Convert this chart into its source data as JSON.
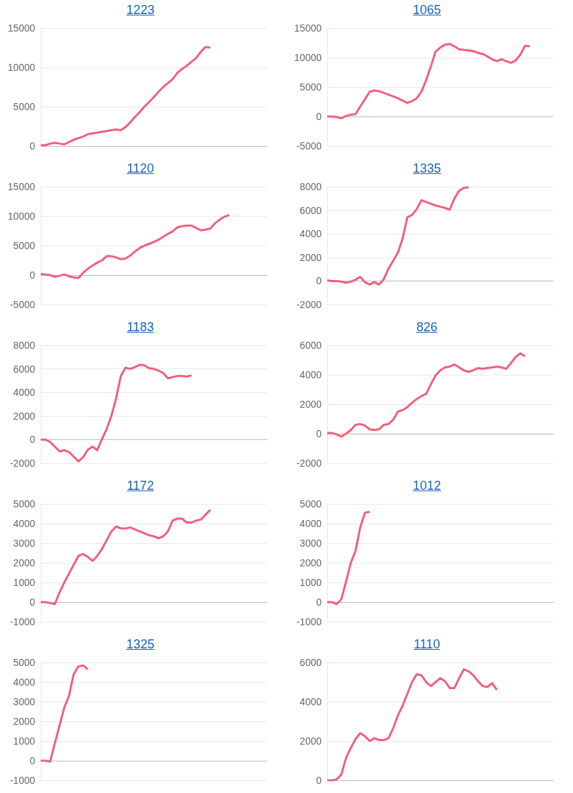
{
  "chart_data": [
    {
      "type": "line",
      "title": "1223",
      "categories": [
        null,
        null,
        null,
        null,
        null,
        null,
        null,
        null,
        null,
        null,
        null,
        null,
        null,
        null,
        null,
        null,
        null,
        null,
        null,
        null,
        null,
        null,
        null,
        null,
        null,
        null,
        null,
        null,
        null,
        null,
        null,
        null,
        null,
        null,
        null,
        null,
        null,
        null,
        null,
        null,
        null,
        null,
        null,
        null,
        null,
        null,
        null,
        null,
        null
      ],
      "color": "#f0607a",
      "grid": "y",
      "ylim": [
        0,
        15000
      ],
      "yticks": [
        0,
        5000,
        10000,
        15000
      ],
      "values": [
        100,
        100,
        300,
        400,
        300,
        200,
        500,
        800,
        1000,
        1200,
        1500,
        1600,
        1700,
        1800,
        1900,
        2000,
        2100,
        2000,
        2400,
        3000,
        3700,
        4300,
        5000,
        5600,
        6200,
        6900,
        7500,
        8000,
        8500,
        9300,
        9800,
        10200,
        10700,
        11200,
        12000,
        12600,
        12500,
        null,
        null,
        null,
        null,
        null,
        null,
        null,
        null,
        null,
        null,
        null,
        null
      ]
    },
    {
      "type": "line",
      "title": "1065",
      "categories": [
        null,
        null,
        null,
        null,
        null,
        null,
        null,
        null,
        null,
        null,
        null,
        null,
        null,
        null,
        null,
        null,
        null,
        null,
        null,
        null,
        null,
        null,
        null,
        null,
        null,
        null,
        null,
        null,
        null,
        null,
        null,
        null,
        null,
        null,
        null,
        null,
        null,
        null,
        null,
        null,
        null,
        null,
        null,
        null,
        null,
        null,
        null,
        null,
        null
      ],
      "color": "#f0607a",
      "grid": "y",
      "ylim": [
        -5000,
        15000
      ],
      "yticks": [
        -5000,
        0,
        5000,
        10000,
        15000
      ],
      "values": [
        0,
        0,
        -100,
        -300,
        100,
        300,
        400,
        1700,
        2900,
        4200,
        4400,
        4300,
        4000,
        3700,
        3400,
        3100,
        2700,
        2300,
        2600,
        3100,
        4200,
        6200,
        8500,
        11000,
        11700,
        12200,
        12300,
        11900,
        11400,
        11300,
        11200,
        11100,
        10800,
        10600,
        10200,
        9700,
        9400,
        9700,
        9400,
        9100,
        9500,
        10500,
        12000,
        11900,
        null,
        null,
        null,
        null,
        null
      ]
    },
    {
      "type": "line",
      "title": "1120",
      "categories": [
        null,
        null,
        null,
        null,
        null,
        null,
        null,
        null,
        null,
        null,
        null,
        null,
        null,
        null,
        null,
        null,
        null,
        null,
        null,
        null,
        null,
        null,
        null,
        null,
        null,
        null,
        null,
        null,
        null,
        null,
        null,
        null,
        null,
        null,
        null,
        null,
        null,
        null,
        null,
        null,
        null,
        null,
        null,
        null,
        null,
        null,
        null,
        null,
        null
      ],
      "color": "#f0607a",
      "grid": "y",
      "ylim": [
        -5000,
        15000
      ],
      "yticks": [
        -5000,
        0,
        5000,
        10000,
        15000
      ],
      "values": [
        200,
        100,
        0,
        -300,
        -100,
        100,
        -200,
        -400,
        -500,
        400,
        1100,
        1600,
        2100,
        2500,
        3200,
        3200,
        3000,
        2700,
        2800,
        3300,
        4000,
        4600,
        5000,
        5300,
        5600,
        6000,
        6500,
        7000,
        7400,
        8100,
        8300,
        8400,
        8400,
        8000,
        7600,
        7700,
        7900,
        8800,
        9400,
        9900,
        10200,
        null,
        null,
        null,
        null,
        null,
        null,
        null,
        null
      ]
    },
    {
      "type": "line",
      "title": "1335",
      "categories": [
        null,
        null,
        null,
        null,
        null,
        null,
        null,
        null,
        null,
        null,
        null,
        null,
        null,
        null,
        null,
        null,
        null,
        null,
        null,
        null,
        null,
        null,
        null,
        null,
        null,
        null,
        null,
        null,
        null,
        null,
        null,
        null,
        null,
        null,
        null,
        null,
        null,
        null,
        null,
        null,
        null,
        null,
        null,
        null,
        null,
        null,
        null,
        null,
        null
      ],
      "color": "#f0607a",
      "grid": "y",
      "ylim": [
        -2000,
        8000
      ],
      "yticks": [
        -2000,
        0,
        2000,
        4000,
        6000,
        8000
      ],
      "values": [
        50,
        0,
        0,
        -50,
        -150,
        -50,
        100,
        350,
        -100,
        -300,
        -100,
        -300,
        150,
        1050,
        1700,
        2400,
        3600,
        5400,
        5600,
        6100,
        6850,
        6700,
        6550,
        6400,
        6300,
        6200,
        6050,
        7000,
        7650,
        7900,
        7950,
        null,
        null,
        null,
        null,
        null,
        null,
        null,
        null,
        null,
        null,
        null,
        null,
        null,
        null,
        null,
        null,
        null,
        null
      ]
    },
    {
      "type": "line",
      "title": "1183",
      "categories": [
        null,
        null,
        null,
        null,
        null,
        null,
        null,
        null,
        null,
        null,
        null,
        null,
        null,
        null,
        null,
        null,
        null,
        null,
        null,
        null,
        null,
        null,
        null,
        null,
        null,
        null,
        null,
        null,
        null,
        null,
        null,
        null,
        null,
        null,
        null,
        null,
        null,
        null,
        null,
        null,
        null,
        null,
        null,
        null,
        null,
        null,
        null,
        null,
        null
      ],
      "color": "#f0607a",
      "grid": "y",
      "ylim": [
        -2000,
        8000
      ],
      "yticks": [
        -2000,
        0,
        2000,
        4000,
        6000,
        8000
      ],
      "values": [
        0,
        0,
        -200,
        -600,
        -1000,
        -900,
        -1050,
        -1450,
        -1850,
        -1500,
        -850,
        -600,
        -900,
        50,
        900,
        2000,
        3500,
        5400,
        6100,
        6000,
        6150,
        6350,
        6300,
        6050,
        6000,
        5850,
        5650,
        5200,
        5300,
        5400,
        5400,
        5350,
        5450,
        null,
        null,
        null,
        null,
        null,
        null,
        null,
        null,
        null,
        null,
        null,
        null,
        null,
        null,
        null,
        null
      ]
    },
    {
      "type": "line",
      "title": "826",
      "categories": [
        null,
        null,
        null,
        null,
        null,
        null,
        null,
        null,
        null,
        null,
        null,
        null,
        null,
        null,
        null,
        null,
        null,
        null,
        null,
        null,
        null,
        null,
        null,
        null,
        null,
        null,
        null,
        null,
        null,
        null,
        null,
        null,
        null,
        null,
        null,
        null,
        null,
        null,
        null,
        null,
        null,
        null,
        null,
        null,
        null,
        null,
        null,
        null,
        null
      ],
      "color": "#f0607a",
      "grid": "y",
      "ylim": [
        -2000,
        6000
      ],
      "yticks": [
        -2000,
        0,
        2000,
        4000,
        6000
      ],
      "values": [
        50,
        50,
        -50,
        -200,
        0,
        250,
        600,
        650,
        550,
        300,
        250,
        300,
        600,
        650,
        950,
        1500,
        1600,
        1800,
        2100,
        2350,
        2550,
        2700,
        3350,
        3950,
        4300,
        4500,
        4550,
        4700,
        4500,
        4300,
        4200,
        4300,
        4450,
        4400,
        4450,
        4500,
        4550,
        4500,
        4400,
        4800,
        5200,
        5450,
        5250,
        null,
        null,
        null,
        null,
        null,
        null
      ]
    },
    {
      "type": "line",
      "title": "1172",
      "categories": [
        null,
        null,
        null,
        null,
        null,
        null,
        null,
        null,
        null,
        null,
        null,
        null,
        null,
        null,
        null,
        null,
        null,
        null,
        null,
        null,
        null,
        null,
        null,
        null,
        null,
        null,
        null,
        null,
        null,
        null,
        null,
        null,
        null,
        null,
        null,
        null,
        null,
        null,
        null,
        null,
        null,
        null,
        null,
        null,
        null,
        null,
        null,
        null,
        null
      ],
      "color": "#f0607a",
      "grid": "y",
      "ylim": [
        -1000,
        5000
      ],
      "yticks": [
        -1000,
        0,
        1000,
        2000,
        3000,
        4000,
        5000
      ],
      "values": [
        0,
        0,
        -50,
        -100,
        500,
        1000,
        1450,
        1900,
        2350,
        2450,
        2300,
        2100,
        2350,
        2700,
        3150,
        3600,
        3850,
        3750,
        3750,
        3800,
        3700,
        3600,
        3500,
        3400,
        3350,
        3250,
        3350,
        3600,
        4150,
        4250,
        4250,
        4050,
        4050,
        4150,
        4200,
        4450,
        4700,
        null,
        null,
        null,
        null,
        null,
        null,
        null,
        null,
        null,
        null,
        null,
        null
      ]
    },
    {
      "type": "line",
      "title": "1012",
      "categories": [
        null,
        null,
        null,
        null,
        null,
        null,
        null,
        null,
        null,
        null,
        null,
        null,
        null,
        null,
        null,
        null,
        null,
        null,
        null,
        null,
        null,
        null,
        null,
        null,
        null,
        null,
        null,
        null,
        null,
        null,
        null,
        null,
        null,
        null,
        null,
        null,
        null,
        null,
        null,
        null,
        null,
        null,
        null,
        null,
        null,
        null,
        null,
        null,
        null
      ],
      "color": "#f0607a",
      "grid": "y",
      "ylim": [
        -1000,
        5000
      ],
      "yticks": [
        -1000,
        0,
        1000,
        2000,
        3000,
        4000,
        5000
      ],
      "values": [
        0,
        0,
        -100,
        150,
        1050,
        2000,
        2600,
        3800,
        4550,
        4600,
        null,
        null,
        null,
        null,
        null,
        null,
        null,
        null,
        null,
        null,
        null,
        null,
        null,
        null,
        null,
        null,
        null,
        null,
        null,
        null,
        null,
        null,
        null,
        null,
        null,
        null,
        null,
        null,
        null,
        null,
        null,
        null,
        null,
        null,
        null,
        null,
        null,
        null,
        null
      ]
    },
    {
      "type": "line",
      "title": "1325",
      "categories": [
        null,
        null,
        null,
        null,
        null,
        null,
        null,
        null,
        null,
        null,
        null,
        null,
        null,
        null,
        null,
        null,
        null,
        null,
        null,
        null,
        null,
        null,
        null,
        null,
        null,
        null,
        null,
        null,
        null,
        null,
        null,
        null,
        null,
        null,
        null,
        null,
        null,
        null,
        null,
        null,
        null,
        null,
        null,
        null,
        null,
        null,
        null,
        null,
        null
      ],
      "color": "#f0607a",
      "grid": "y",
      "ylim": [
        -1000,
        5000
      ],
      "yticks": [
        -1000,
        0,
        1000,
        2000,
        3000,
        4000,
        5000
      ],
      "values": [
        0,
        0,
        -50,
        900,
        1800,
        2700,
        3300,
        4400,
        4800,
        4850,
        4650,
        null,
        null,
        null,
        null,
        null,
        null,
        null,
        null,
        null,
        null,
        null,
        null,
        null,
        null,
        null,
        null,
        null,
        null,
        null,
        null,
        null,
        null,
        null,
        null,
        null,
        null,
        null,
        null,
        null,
        null,
        null,
        null,
        null,
        null,
        null,
        null,
        null,
        null
      ]
    },
    {
      "type": "line",
      "title": "1110",
      "categories": [
        null,
        null,
        null,
        null,
        null,
        null,
        null,
        null,
        null,
        null,
        null,
        null,
        null,
        null,
        null,
        null,
        null,
        null,
        null,
        null,
        null,
        null,
        null,
        null,
        null,
        null,
        null,
        null,
        null,
        null,
        null,
        null,
        null,
        null,
        null,
        null,
        null,
        null,
        null,
        null,
        null,
        null,
        null,
        null,
        null,
        null,
        null,
        null,
        null
      ],
      "color": "#f0607a",
      "grid": "y",
      "ylim": [
        0,
        6000
      ],
      "yticks": [
        0,
        2000,
        4000,
        6000
      ],
      "values": [
        0,
        0,
        50,
        300,
        1150,
        1650,
        2100,
        2400,
        2250,
        2000,
        2150,
        2050,
        2050,
        2150,
        2650,
        3300,
        3800,
        4400,
        5000,
        5400,
        5350,
        5000,
        4800,
        5000,
        5200,
        5050,
        4700,
        4700,
        5200,
        5650,
        5550,
        5350,
        5050,
        4800,
        4750,
        4950,
        4600,
        null,
        null,
        null,
        null,
        null,
        null,
        null,
        null,
        null,
        null,
        null,
        null
      ]
    }
  ]
}
